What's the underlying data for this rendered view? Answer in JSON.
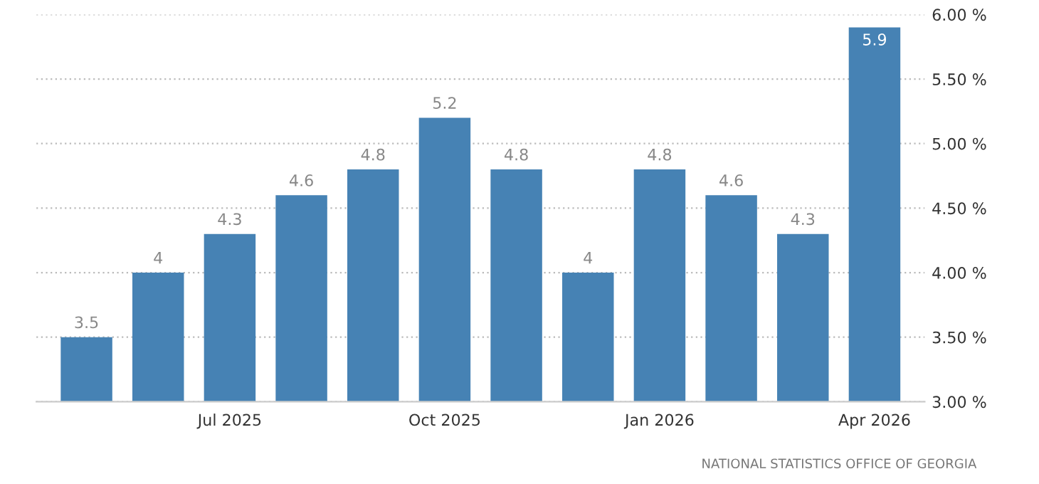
{
  "chart_data": {
    "type": "bar",
    "categories": [
      null,
      null,
      "Jul 2025",
      null,
      null,
      "Oct 2025",
      null,
      null,
      "Jan 2026",
      null,
      null,
      "Apr 2026"
    ],
    "values": [
      3.5,
      4,
      4.3,
      4.6,
      4.8,
      5.2,
      4.8,
      4,
      4.8,
      4.6,
      4.3,
      5.9
    ],
    "color": "#4682b4",
    "data_labels": true,
    "ylim": [
      3,
      6
    ],
    "yticks": [
      {
        "value": 3,
        "label": "3.00 %"
      },
      {
        "value": 3.5,
        "label": "3.50 %"
      },
      {
        "value": 4,
        "label": "4.00 %"
      },
      {
        "value": 4.5,
        "label": "4.50 %"
      },
      {
        "value": 5,
        "label": "5.00 %"
      },
      {
        "value": 5.5,
        "label": "5.50 %"
      },
      {
        "value": 6,
        "label": "6.00 %"
      }
    ],
    "grid": "y",
    "legend": false,
    "annotations": [
      "NATIONAL STATISTICS OFFICE OF GEORGIA"
    ]
  }
}
